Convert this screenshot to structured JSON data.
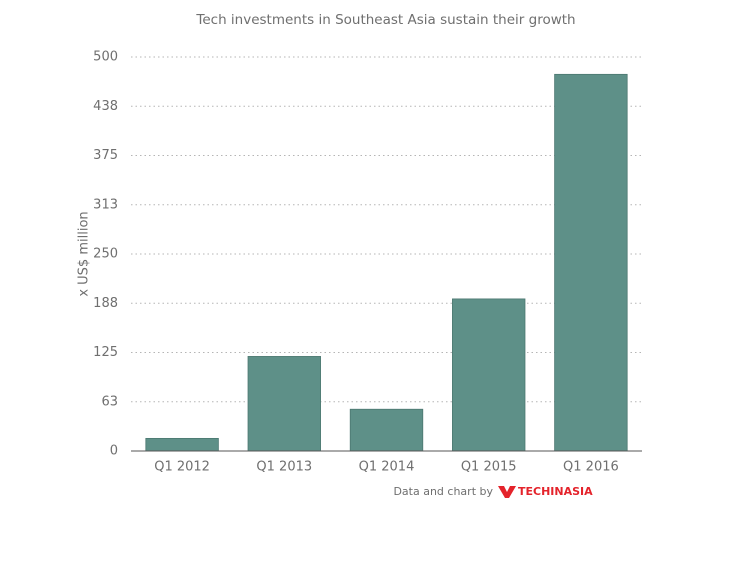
{
  "chart_data": {
    "type": "bar",
    "title": "Tech investments in Southeast Asia sustain their growth",
    "ylabel": "x US$ million",
    "categories": [
      "Q1 2012",
      "Q1 2013",
      "Q1 2014",
      "Q1 2015",
      "Q1 2016"
    ],
    "values": [
      16,
      120,
      53,
      193,
      478
    ],
    "color": "#5e9088",
    "ylim": [
      0,
      500
    ],
    "yticks": [
      0,
      {
        "value": 62.5,
        "label": "63"
      },
      125,
      {
        "value": 187.5,
        "label": "188"
      },
      250,
      {
        "value": 312.5,
        "label": "313"
      },
      375,
      {
        "value": 437.5,
        "label": "438"
      },
      500
    ],
    "grid": true,
    "source": "Data and chart by",
    "brand": "TECHINASIA"
  }
}
